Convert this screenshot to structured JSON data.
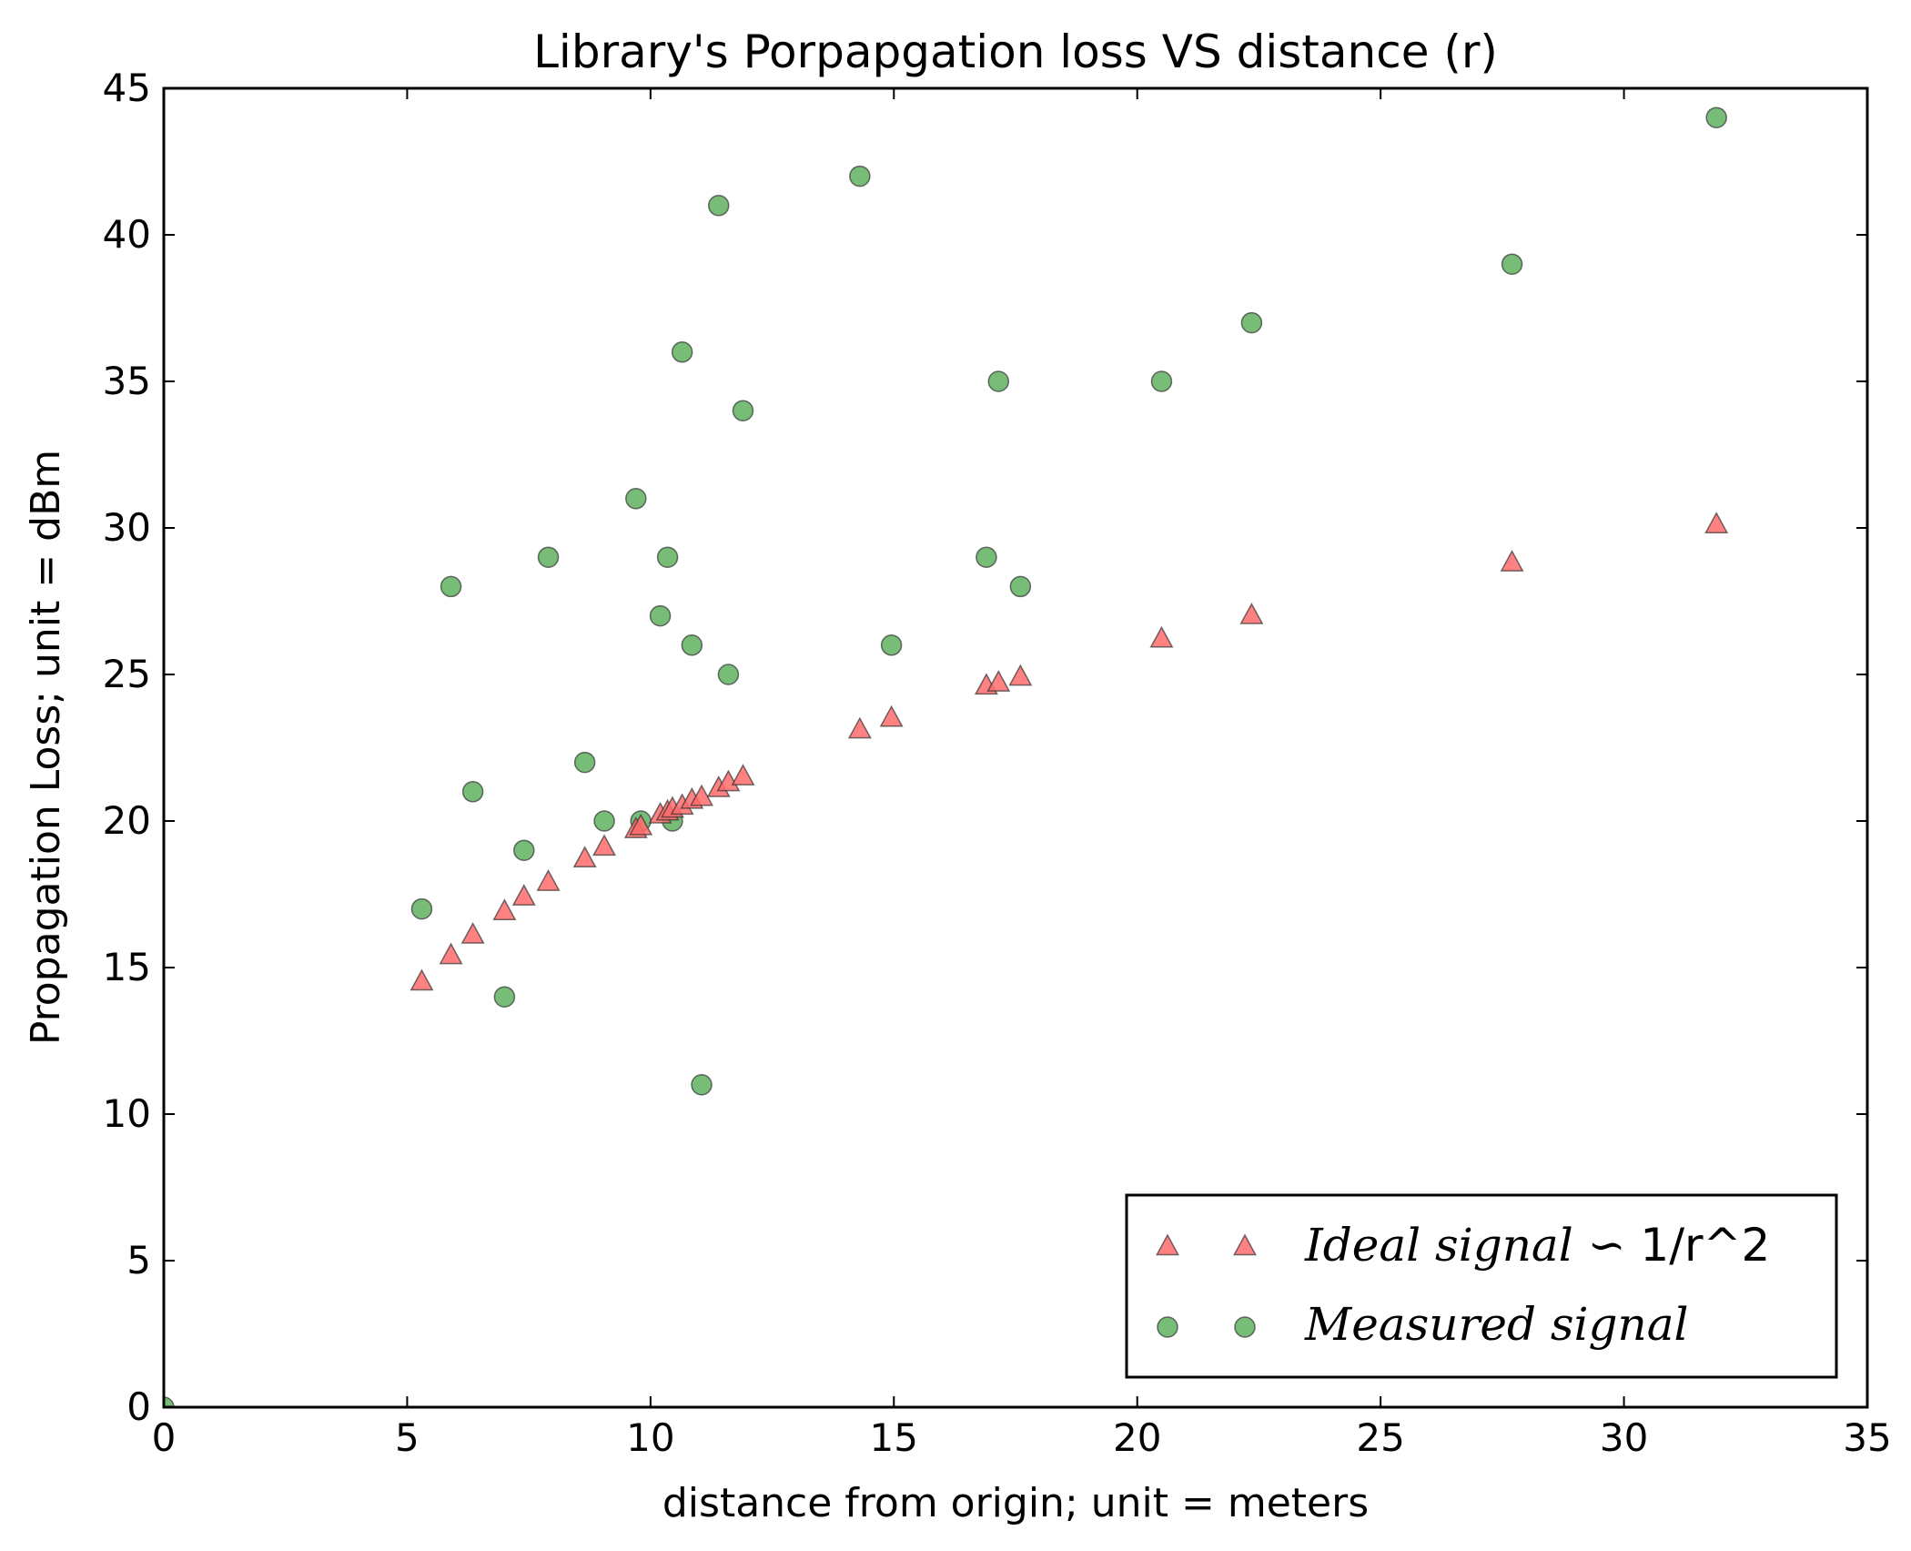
{
  "chart_data": {
    "type": "scatter",
    "title": "Library's Porpapgation loss VS distance (r)",
    "xlabel": "distance from origin; unit = meters",
    "ylabel": "Propagation Loss; unit = dBm",
    "xlim": [
      0,
      35
    ],
    "ylim": [
      0,
      45
    ],
    "xticks": [
      0,
      5,
      10,
      15,
      20,
      25,
      30,
      35
    ],
    "yticks": [
      0,
      5,
      10,
      15,
      20,
      25,
      30,
      35,
      40,
      45
    ],
    "grid": false,
    "legend_position": "lower-right",
    "series": [
      {
        "name": "Ideal signal ∽ 1/r^2",
        "legend_italic": "Ideal signal ∽ ",
        "legend_plain": "1/r^2",
        "marker": "triangle",
        "color": "#ff6b6b",
        "x": [
          5.3,
          5.9,
          6.35,
          7.0,
          7.4,
          7.9,
          8.65,
          9.05,
          9.7,
          9.8,
          10.2,
          10.35,
          10.45,
          10.65,
          10.85,
          11.05,
          11.4,
          11.6,
          11.9,
          14.3,
          14.95,
          16.9,
          17.15,
          17.6,
          20.5,
          22.35,
          27.7,
          31.9
        ],
        "y": [
          14.5,
          15.4,
          16.1,
          16.9,
          17.4,
          17.9,
          18.7,
          19.1,
          19.7,
          19.8,
          20.2,
          20.3,
          20.4,
          20.5,
          20.7,
          20.8,
          21.1,
          21.3,
          21.5,
          23.1,
          23.5,
          24.6,
          24.7,
          24.9,
          26.2,
          27.0,
          28.8,
          30.1
        ]
      },
      {
        "name": "Measured signal",
        "legend_italic": "Measured signal",
        "legend_plain": "",
        "marker": "circle",
        "color": "#5fb05f",
        "x": [
          0,
          5.3,
          5.9,
          6.35,
          7.0,
          7.4,
          7.9,
          8.65,
          9.05,
          9.7,
          9.8,
          10.2,
          10.35,
          10.45,
          10.65,
          10.85,
          11.05,
          11.4,
          11.6,
          11.9,
          14.3,
          14.95,
          16.9,
          17.15,
          17.6,
          20.5,
          22.35,
          27.7,
          31.9
        ],
        "y": [
          0,
          17,
          28,
          21,
          14,
          19,
          29,
          22,
          20,
          31,
          20,
          27,
          29,
          20,
          36,
          26,
          11,
          41,
          25,
          34,
          42,
          26,
          29,
          35,
          28,
          35,
          37,
          39,
          44
        ]
      }
    ]
  }
}
